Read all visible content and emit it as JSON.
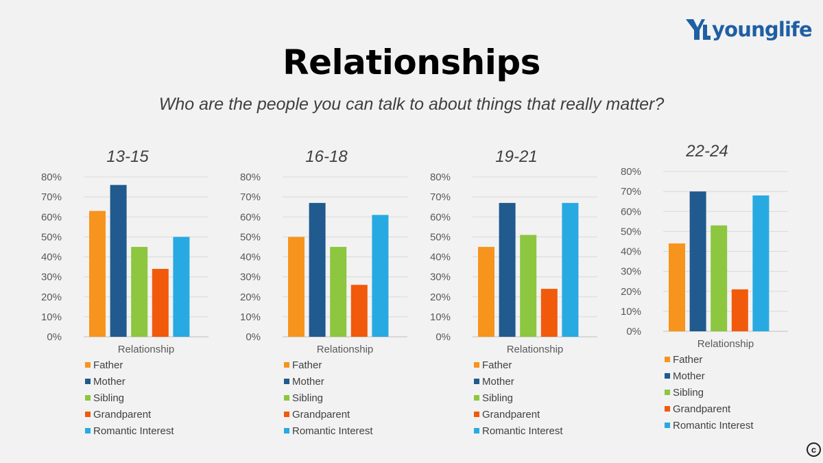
{
  "slide": {
    "title": "Relationships",
    "subtitle": "Who are the people you can talk to about things that really matter?",
    "logo_text": "younglife",
    "copyright_symbol": "c"
  },
  "colors": {
    "Father": "#f7941d",
    "Mother": "#205a8e",
    "Sibling": "#8dc63f",
    "Grandparent": "#f15a0b",
    "Romantic Interest": "#27aae1",
    "logo": "#1f5fa3"
  },
  "chart_data": [
    {
      "type": "bar",
      "title": "13-15",
      "xlabel": "Relationship",
      "categories": [
        "Relationship"
      ],
      "ylim": [
        0,
        0.8
      ],
      "yticks": [
        "0%",
        "10%",
        "20%",
        "30%",
        "40%",
        "50%",
        "60%",
        "70%",
        "80%"
      ],
      "grid": true,
      "legend": "bottom",
      "series": [
        {
          "name": "Father",
          "values": [
            0.63
          ]
        },
        {
          "name": "Mother",
          "values": [
            0.76
          ]
        },
        {
          "name": "Sibling",
          "values": [
            0.45
          ]
        },
        {
          "name": "Grandparent",
          "values": [
            0.34
          ]
        },
        {
          "name": "Romantic Interest",
          "values": [
            0.5
          ]
        }
      ]
    },
    {
      "type": "bar",
      "title": "16-18",
      "xlabel": "Relationship",
      "categories": [
        "Relationship"
      ],
      "ylim": [
        0,
        0.8
      ],
      "yticks": [
        "0%",
        "10%",
        "20%",
        "30%",
        "40%",
        "50%",
        "60%",
        "70%",
        "80%"
      ],
      "grid": true,
      "legend": "bottom",
      "series": [
        {
          "name": "Father",
          "values": [
            0.5
          ]
        },
        {
          "name": "Mother",
          "values": [
            0.67
          ]
        },
        {
          "name": "Sibling",
          "values": [
            0.45
          ]
        },
        {
          "name": "Grandparent",
          "values": [
            0.26
          ]
        },
        {
          "name": "Romantic Interest",
          "values": [
            0.61
          ]
        }
      ]
    },
    {
      "type": "bar",
      "title": "19-21",
      "xlabel": "Relationship",
      "categories": [
        "Relationship"
      ],
      "ylim": [
        0,
        0.8
      ],
      "yticks": [
        "0%",
        "10%",
        "20%",
        "30%",
        "40%",
        "50%",
        "60%",
        "70%",
        "80%"
      ],
      "grid": true,
      "legend": "bottom",
      "series": [
        {
          "name": "Father",
          "values": [
            0.45
          ]
        },
        {
          "name": "Mother",
          "values": [
            0.67
          ]
        },
        {
          "name": "Sibling",
          "values": [
            0.51
          ]
        },
        {
          "name": "Grandparent",
          "values": [
            0.24
          ]
        },
        {
          "name": "Romantic Interest",
          "values": [
            0.67
          ]
        }
      ]
    },
    {
      "type": "bar",
      "title": "22-24",
      "xlabel": "Relationship",
      "categories": [
        "Relationship"
      ],
      "ylim": [
        0,
        0.8
      ],
      "yticks": [
        "0%",
        "10%",
        "20%",
        "30%",
        "40%",
        "50%",
        "60%",
        "70%",
        "80%"
      ],
      "grid": true,
      "legend": "bottom",
      "series": [
        {
          "name": "Father",
          "values": [
            0.44
          ]
        },
        {
          "name": "Mother",
          "values": [
            0.7
          ]
        },
        {
          "name": "Sibling",
          "values": [
            0.53
          ]
        },
        {
          "name": "Grandparent",
          "values": [
            0.21
          ]
        },
        {
          "name": "Romantic Interest",
          "values": [
            0.68
          ]
        }
      ]
    }
  ]
}
